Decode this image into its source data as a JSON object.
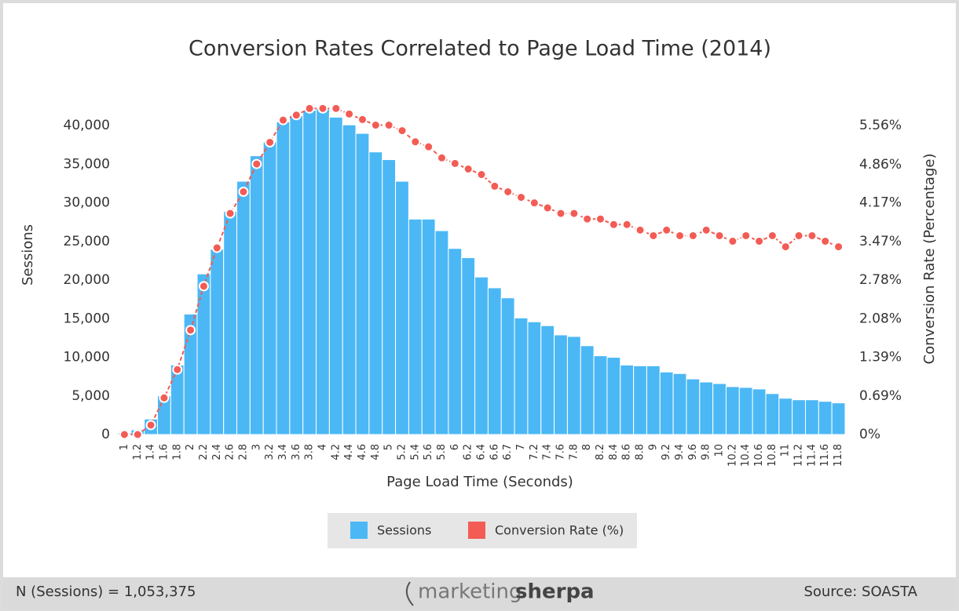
{
  "chart_data": {
    "type": "bar",
    "title": "Conversion Rates Correlated to Page Load Time (2014)",
    "x_label": "Page Load Time (Seconds)",
    "y_label": "Sessions",
    "y2_label": "Conversion Rate (Percentage)",
    "categories": [
      "1",
      "1.2",
      "1.4",
      "1.6",
      "1.8",
      "2",
      "2.2",
      "2.4",
      "2.6",
      "2.8",
      "3",
      "3.2",
      "3.4",
      "3.6",
      "3.8",
      "4",
      "4.2",
      "4.4",
      "4.6",
      "4.8",
      "5",
      "5.2",
      "5.4",
      "5.6",
      "5.8",
      "6",
      "6.2",
      "6.4",
      "6.6",
      "6.7",
      "7",
      "7.2",
      "7.4",
      "7.6",
      "7.8",
      "8",
      "8.2",
      "8.4",
      "8.6",
      "8.8",
      "9",
      "9.2",
      "9.4",
      "9.6",
      "9.8",
      "10",
      "10.2",
      "10.4",
      "10.6",
      "10.8",
      "11",
      "11.2",
      "11.4",
      "11.6",
      "11.8"
    ],
    "series": [
      {
        "name": "Sessions",
        "type": "bar",
        "color": "#4bb8f5",
        "values": [
          200,
          600,
          2000,
          5000,
          9000,
          15600,
          20800,
          24000,
          28900,
          32800,
          36100,
          37900,
          40500,
          41300,
          42000,
          42200,
          41100,
          40100,
          39000,
          36600,
          35600,
          32800,
          27900,
          27900,
          26400,
          24100,
          22900,
          20400,
          19000,
          17700,
          15100,
          14600,
          14100,
          12900,
          12700,
          11500,
          10200,
          10000,
          9000,
          8900,
          8900,
          8100,
          7900,
          7200,
          6800,
          6600,
          6200,
          6100,
          5900,
          5300,
          4700,
          4500,
          4500,
          4300,
          4100
        ]
      },
      {
        "name": "Conversion Rate (%)",
        "type": "line",
        "axis": "y2",
        "color": "#f25c54",
        "values": [
          0,
          0,
          0.17,
          0.66,
          1.17,
          1.88,
          2.67,
          3.36,
          3.98,
          4.37,
          4.87,
          5.26,
          5.66,
          5.75,
          5.87,
          5.87,
          5.87,
          5.77,
          5.67,
          5.57,
          5.57,
          5.47,
          5.27,
          5.18,
          4.98,
          4.88,
          4.78,
          4.68,
          4.47,
          4.37,
          4.27,
          4.17,
          4.08,
          3.98,
          3.98,
          3.88,
          3.88,
          3.78,
          3.78,
          3.68,
          3.58,
          3.68,
          3.58,
          3.58,
          3.68,
          3.58,
          3.48,
          3.58,
          3.48,
          3.58,
          3.38,
          3.58,
          3.58,
          3.48,
          3.38
        ]
      }
    ],
    "ylim": [
      0,
      45000
    ],
    "yticks": [
      0,
      {
        "value": 5000,
        "label": "5,000"
      },
      {
        "value": 10000,
        "label": "10,000"
      },
      {
        "value": 15000,
        "label": "15,000"
      },
      {
        "value": 20000,
        "label": "20,000"
      },
      {
        "value": 25000,
        "label": "25,000"
      },
      {
        "value": 30000,
        "label": "30,000"
      },
      {
        "value": 35000,
        "label": "35,000"
      },
      {
        "value": 40000,
        "label": "40,000"
      }
    ],
    "y2lim": [
      0,
      6.255
    ],
    "y2ticks": [
      {
        "value": 0,
        "label": "0%"
      },
      {
        "value": 0.69,
        "label": "0.69%"
      },
      {
        "value": 1.39,
        "label": "1.39%"
      },
      {
        "value": 2.08,
        "label": "2.08%"
      },
      {
        "value": 2.78,
        "label": "2.78%"
      },
      {
        "value": 3.47,
        "label": "3.47%"
      },
      {
        "value": 4.17,
        "label": "4.17%"
      },
      {
        "value": 4.86,
        "label": "4.86%"
      },
      {
        "value": 5.56,
        "label": "5.56%"
      }
    ],
    "grid": false,
    "legend": "bottom"
  },
  "footer": {
    "note": "N (Sessions) = 1,053,375",
    "logo_light": "marketing",
    "logo_bold": "sherpa",
    "source": "Source:  SOASTA"
  }
}
